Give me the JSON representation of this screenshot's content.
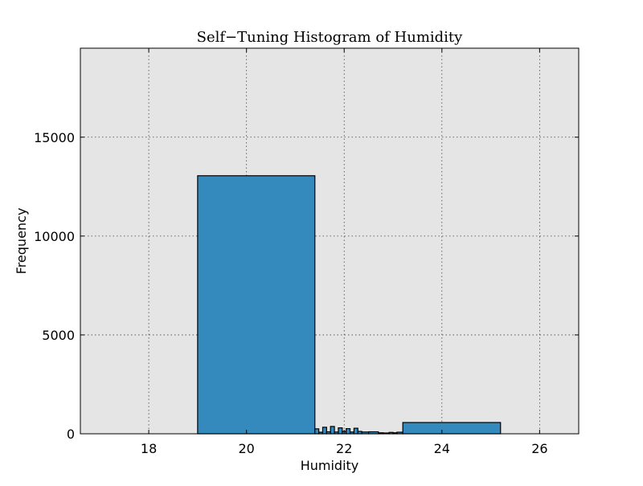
{
  "chart_data": {
    "type": "bar",
    "title": "Self−Tuning Histogram of Humidity",
    "xlabel": "Humidity",
    "ylabel": "Frequency",
    "xlim": [
      16.6,
      26.8
    ],
    "ylim": [
      0,
      19500
    ],
    "xticks": [
      18,
      20,
      22,
      24,
      26
    ],
    "yticks": [
      0,
      5000,
      10000,
      15000
    ],
    "grid": true,
    "background_color": "#e5e5e5",
    "bar_color": "#348abd",
    "bins": [
      {
        "x0": 19.0,
        "x1": 21.4,
        "value": 13050
      },
      {
        "x0": 21.4,
        "x1": 21.48,
        "value": 250
      },
      {
        "x0": 21.48,
        "x1": 21.56,
        "value": 80
      },
      {
        "x0": 21.56,
        "x1": 21.64,
        "value": 330
      },
      {
        "x0": 21.64,
        "x1": 21.72,
        "value": 100
      },
      {
        "x0": 21.72,
        "x1": 21.8,
        "value": 370
      },
      {
        "x0": 21.8,
        "x1": 21.88,
        "value": 90
      },
      {
        "x0": 21.88,
        "x1": 21.96,
        "value": 300
      },
      {
        "x0": 21.96,
        "x1": 22.04,
        "value": 120
      },
      {
        "x0": 22.04,
        "x1": 22.12,
        "value": 260
      },
      {
        "x0": 22.12,
        "x1": 22.2,
        "value": 90
      },
      {
        "x0": 22.2,
        "x1": 22.28,
        "value": 280
      },
      {
        "x0": 22.28,
        "x1": 22.36,
        "value": 120
      },
      {
        "x0": 22.36,
        "x1": 22.5,
        "value": 90
      },
      {
        "x0": 22.5,
        "x1": 22.7,
        "value": 100
      },
      {
        "x0": 22.7,
        "x1": 22.8,
        "value": 50
      },
      {
        "x0": 22.8,
        "x1": 22.92,
        "value": 40
      },
      {
        "x0": 22.92,
        "x1": 23.0,
        "value": 70
      },
      {
        "x0": 23.0,
        "x1": 23.08,
        "value": 50
      },
      {
        "x0": 23.08,
        "x1": 23.2,
        "value": 80
      },
      {
        "x0": 23.2,
        "x1": 25.2,
        "value": 570
      }
    ]
  }
}
